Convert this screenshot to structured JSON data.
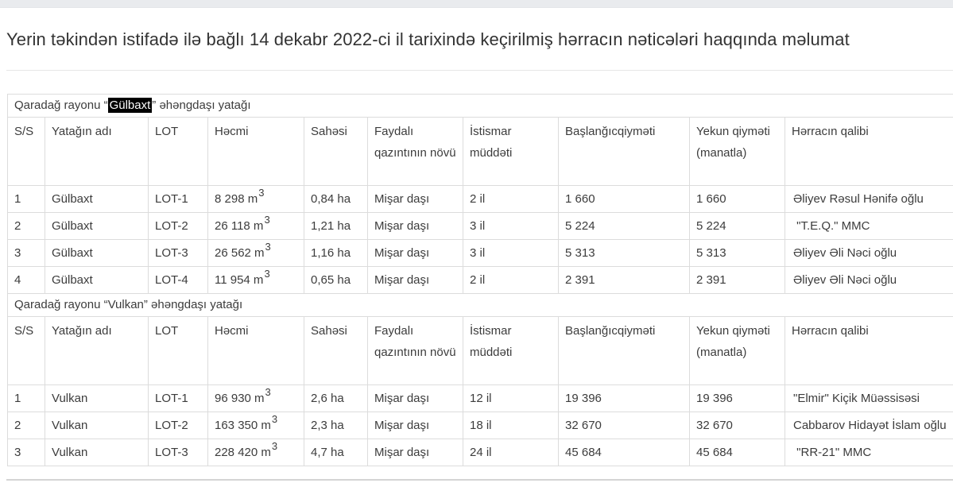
{
  "page": {
    "title": "Yerin təkindən istifadə ilə bağlı 14 dekabr 2022-ci il tarixində keçirilmiş hərracın nəticələri haqqında məlumat"
  },
  "table": {
    "columns": [
      {
        "key": "ss",
        "label": "S/S"
      },
      {
        "key": "name",
        "label": "Yatağın adı"
      },
      {
        "key": "lot",
        "label": "LOT"
      },
      {
        "key": "volume",
        "label": "Həcmi"
      },
      {
        "key": "area",
        "label": "Sahəsi"
      },
      {
        "key": "mineral",
        "label": "Faydalı qazıntının növü"
      },
      {
        "key": "term",
        "label": "İstismar müddəti"
      },
      {
        "key": "start_price",
        "label": "Başlanğıcqiyməti"
      },
      {
        "key": "final_price",
        "label": "Yekun qiyməti (manatla)"
      },
      {
        "key": "winner",
        "label": "Hərracın qalibi"
      }
    ],
    "sections": [
      {
        "caption": {
          "prefix": "Qaradağ rayonu “",
          "highlight": "Gülbaxt",
          "suffix": "” əhəngdaşı yatağı"
        },
        "rows": [
          {
            "ss": "1",
            "name": "Gülbaxt",
            "lot": "LOT-1",
            "volume": {
              "text": "8 298 m",
              "sup": "3"
            },
            "area": "0,84 ha",
            "mineral": "Mişar daşı",
            "term": "2 il",
            "start_price": "1 660",
            "final_price": "1 660",
            "winner": "Əliyev Rəsul Hənifə oğlu"
          },
          {
            "ss": "2",
            "name": "Gülbaxt",
            "lot": "LOT-2",
            "volume": {
              "text": "26 118 m",
              "sup": "3"
            },
            "area": "1,21 ha",
            "mineral": "Mişar daşı",
            "term": "3 il",
            "start_price": "5 224",
            "final_price": "5 224",
            "winner": " \"T.E.Q.\" MMC"
          },
          {
            "ss": "3",
            "name": "Gülbaxt",
            "lot": "LOT-3",
            "volume": {
              "text": "26 562 m",
              "sup": "3"
            },
            "area": "1,16 ha",
            "mineral": "Mişar daşı",
            "term": "3 il",
            "start_price": "5 313",
            "final_price": "5 313",
            "winner": "Əliyev Əli Nəci oğlu"
          },
          {
            "ss": "4",
            "name": "Gülbaxt",
            "lot": "LOT-4",
            "volume": {
              "text": "11 954 m",
              "sup": "3"
            },
            "area": "0,65 ha",
            "mineral": "Mişar daşı",
            "term": "2 il",
            "start_price": "2 391",
            "final_price": "2 391",
            "winner": "Əliyev Əli Nəci oğlu"
          }
        ]
      },
      {
        "caption": {
          "prefix": "Qaradağ rayonu “Vulkan” əhəngdaşı yatağı",
          "highlight": "",
          "suffix": ""
        },
        "rows": [
          {
            "ss": "1",
            "name": "Vulkan",
            "lot": "LOT-1",
            "volume": {
              "text": "96 930 m",
              "sup": "3"
            },
            "area": "2,6 ha",
            "mineral": "Mişar daşı",
            "term": "12 il",
            "start_price": "19 396",
            "final_price": "19 396",
            "winner": "\"Elmir\" Kiçik Müəssisəsi"
          },
          {
            "ss": "2",
            "name": "Vulkan",
            "lot": "LOT-2",
            "volume": {
              "text": "163 350 m",
              "sup": "3"
            },
            "area": "2,3 ha",
            "mineral": "Mişar daşı",
            "term": "18 il",
            "start_price": "32 670",
            "final_price": "32 670",
            "winner": "Cabbarov Hidayət İslam oğlu"
          },
          {
            "ss": "3",
            "name": "Vulkan",
            "lot": "LOT-3",
            "volume": {
              "text": "228 420 m",
              "sup": "3"
            },
            "area": "4,7 ha",
            "mineral": "Mişar daşı",
            "term": "24 il",
            "start_price": "45 684",
            "final_price": "45 684",
            "winner": " \"RR-21\" MMC"
          }
        ]
      }
    ]
  }
}
